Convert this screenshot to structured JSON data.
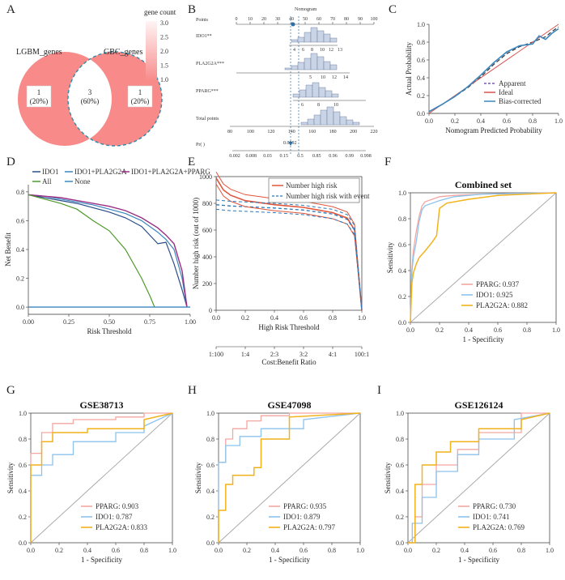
{
  "panels": {
    "A": {
      "label": "A",
      "chart_data": {
        "type": "venn",
        "sets": [
          "LGBM_genes",
          "GBC_genes"
        ],
        "regions": [
          {
            "set": "LGBM_genes only",
            "count": "1",
            "pct": "(20%)"
          },
          {
            "set": "both",
            "count": "3",
            "pct": "(60%)"
          },
          {
            "set": "GBC_genes only",
            "count": "1",
            "pct": "(20%)"
          }
        ],
        "legend_title": "gene count",
        "legend_ticks": [
          "3.0",
          "2.5",
          "2.0",
          "1.5",
          "1.0"
        ]
      }
    },
    "B": {
      "label": "B",
      "chart_data": {
        "type": "nomogram",
        "rows": [
          "Points",
          "IDO1**",
          "PLA2G2A***",
          "PPARG***",
          "Total points",
          "Pr( )"
        ],
        "points_ticks": [
          "0",
          "10",
          "20",
          "30",
          "40",
          "50",
          "60",
          "70",
          "80",
          "90",
          "100"
        ],
        "ido1_ticks": [
          "4",
          "6",
          "8",
          "10",
          "12",
          "13"
        ],
        "pla2g2a_ticks": [
          "5",
          "10",
          "12",
          "14"
        ],
        "pparg_ticks": [
          "6",
          "8",
          "10"
        ],
        "total_ticks": [
          "80",
          "100",
          "120",
          "140",
          "160",
          "180",
          "200",
          "220"
        ],
        "prob_ticks": [
          "0.002",
          "0.008",
          "0.03",
          "0.15",
          "0.5",
          "0.85",
          "0.96",
          "0.99",
          "0.998"
        ],
        "highlight_label": "Nomogram",
        "prob_value": "0.0592"
      }
    },
    "C": {
      "label": "C",
      "chart_data": {
        "type": "line",
        "xlabel": "Nomogram Predicted Probability",
        "ylabel": "Actual Probability",
        "xlim": [
          0,
          1
        ],
        "ylim": [
          0,
          1
        ],
        "x_ticks": [
          "0.0",
          "0.2",
          "0.4",
          "0.6",
          "0.8",
          "1.0"
        ],
        "y_ticks": [
          "0.0",
          "0.2",
          "0.4",
          "0.6",
          "0.8",
          "1.0"
        ],
        "legend": [
          "Apparent",
          "Ideal",
          "Bias-corrected"
        ],
        "series": [
          {
            "name": "Apparent",
            "x": [
              0,
              0.1,
              0.2,
              0.3,
              0.4,
              0.5,
              0.6,
              0.7,
              0.8,
              0.85,
              0.9,
              0.95,
              1.0
            ],
            "y": [
              0.02,
              0.1,
              0.19,
              0.29,
              0.41,
              0.55,
              0.67,
              0.75,
              0.8,
              0.83,
              0.86,
              0.92,
              0.97
            ]
          },
          {
            "name": "Ideal",
            "x": [
              0,
              1
            ],
            "y": [
              0,
              1
            ]
          },
          {
            "name": "Bias-corrected",
            "x": [
              0,
              0.1,
              0.2,
              0.3,
              0.4,
              0.5,
              0.6,
              0.7,
              0.8,
              0.85,
              0.9,
              0.95,
              1.0
            ],
            "y": [
              0.02,
              0.1,
              0.19,
              0.3,
              0.43,
              0.57,
              0.69,
              0.76,
              0.78,
              0.87,
              0.83,
              0.9,
              0.95
            ]
          }
        ]
      }
    },
    "D": {
      "label": "D",
      "chart_data": {
        "type": "line",
        "xlabel": "Risk Threshold",
        "ylabel": "Net Benefit",
        "xlim": [
          0,
          1
        ],
        "ylim": [
          -0.05,
          0.85
        ],
        "x_ticks": [
          "0.00",
          "0.25",
          "0.50",
          "0.75",
          "1.00"
        ],
        "y_ticks": [
          "0.0",
          "0.2",
          "0.4",
          "0.6",
          "0.8"
        ],
        "legend": [
          "IDO1",
          "IDO1+PLA2G2A",
          "IDO1+PLA2G2A+PPARG",
          "All",
          "None"
        ],
        "series": [
          {
            "name": "IDO1",
            "x": [
              0,
              0.1,
              0.2,
              0.3,
              0.4,
              0.5,
              0.6,
              0.7,
              0.8,
              0.85,
              0.9,
              0.95,
              0.98
            ],
            "y": [
              0.78,
              0.76,
              0.74,
              0.72,
              0.69,
              0.66,
              0.62,
              0.56,
              0.44,
              0.45,
              0.3,
              0.12,
              0.0
            ]
          },
          {
            "name": "IDO1+PLA2G2A",
            "x": [
              0,
              0.1,
              0.2,
              0.3,
              0.4,
              0.5,
              0.6,
              0.7,
              0.8,
              0.85,
              0.9,
              0.95,
              0.98
            ],
            "y": [
              0.78,
              0.77,
              0.75,
              0.73,
              0.71,
              0.68,
              0.65,
              0.6,
              0.52,
              0.47,
              0.4,
              0.2,
              0.0
            ]
          },
          {
            "name": "IDO1+PLA2G2A+PPARG",
            "x": [
              0,
              0.1,
              0.2,
              0.3,
              0.4,
              0.5,
              0.6,
              0.7,
              0.8,
              0.85,
              0.9,
              0.95,
              0.98
            ],
            "y": [
              0.78,
              0.77,
              0.76,
              0.74,
              0.72,
              0.7,
              0.67,
              0.62,
              0.55,
              0.5,
              0.44,
              0.25,
              0.0
            ]
          },
          {
            "name": "All",
            "x": [
              0,
              0.1,
              0.2,
              0.3,
              0.4,
              0.5,
              0.6,
              0.7,
              0.75,
              0.78
            ],
            "y": [
              0.78,
              0.75,
              0.72,
              0.68,
              0.6,
              0.53,
              0.4,
              0.2,
              0.08,
              0.0
            ]
          },
          {
            "name": "None",
            "x": [
              0,
              1
            ],
            "y": [
              0,
              0
            ]
          }
        ]
      }
    },
    "E": {
      "label": "E",
      "chart_data": {
        "type": "line",
        "xlabel": "High Risk Threshold",
        "ylabel": "Number high risk (out of 1000)",
        "xlabel2": "Cost:Benefit Ratio",
        "xlim": [
          0,
          1
        ],
        "ylim": [
          0,
          1000
        ],
        "x_ticks": [
          "0.0",
          "0.2",
          "0.4",
          "0.6",
          "0.8",
          "1.0"
        ],
        "y_ticks": [
          "0",
          "200",
          "400",
          "600",
          "800",
          "1000"
        ],
        "ratio_ticks": [
          "1:100",
          "1:4",
          "2:3",
          "3:2",
          "4:1",
          "100:1"
        ],
        "legend": [
          "Number high risk",
          "Number high risk with event"
        ],
        "series": [
          {
            "name": "Number high risk",
            "x": [
              0,
              0.05,
              0.1,
              0.2,
              0.4,
              0.6,
              0.8,
              0.9,
              0.95,
              1.0
            ],
            "y": [
              990,
              900,
              860,
              820,
              790,
              770,
              730,
              690,
              600,
              0
            ]
          },
          {
            "name": "Number high risk with event",
            "x": [
              0,
              0.05,
              0.1,
              0.2,
              0.4,
              0.6,
              0.8,
              0.9,
              0.95,
              1.0
            ],
            "y": [
              790,
              785,
              780,
              775,
              765,
              750,
              720,
              680,
              600,
              0
            ]
          }
        ]
      }
    },
    "F": {
      "label": "F",
      "chart_data": {
        "type": "roc",
        "title": "Combined set",
        "xlabel": "1 - Specificity",
        "ylabel": "Sensitivity",
        "x_ticks": [
          "0.0",
          "0.2",
          "0.4",
          "0.6",
          "0.8",
          "1.0"
        ],
        "y_ticks": [
          "0.0",
          "0.2",
          "0.4",
          "0.6",
          "0.8",
          "1.0"
        ],
        "series": [
          {
            "name": "PPARG",
            "auc": "0.937",
            "x": [
              0,
              0.01,
              0.02,
              0.04,
              0.06,
              0.08,
              0.1,
              0.15,
              0.2,
              0.3,
              0.5,
              1.0
            ],
            "y": [
              0,
              0.4,
              0.55,
              0.7,
              0.82,
              0.9,
              0.93,
              0.95,
              0.97,
              0.98,
              0.99,
              1.0
            ]
          },
          {
            "name": "IDO1",
            "auc": "0.925",
            "x": [
              0,
              0.01,
              0.02,
              0.04,
              0.06,
              0.08,
              0.1,
              0.15,
              0.2,
              0.3,
              0.5,
              1.0
            ],
            "y": [
              0,
              0.38,
              0.5,
              0.62,
              0.78,
              0.87,
              0.9,
              0.92,
              0.94,
              0.97,
              0.99,
              1.0
            ]
          },
          {
            "name": "PLA2G2A",
            "auc": "0.882",
            "x": [
              0,
              0.01,
              0.02,
              0.04,
              0.06,
              0.1,
              0.15,
              0.18,
              0.2,
              0.25,
              0.4,
              0.6,
              1.0
            ],
            "y": [
              0,
              0.3,
              0.38,
              0.45,
              0.5,
              0.55,
              0.62,
              0.67,
              0.88,
              0.92,
              0.95,
              0.98,
              1.0
            ]
          }
        ]
      }
    },
    "G": {
      "label": "G",
      "chart_data": {
        "type": "roc",
        "title": "GSE38713",
        "xlabel": "1 - Specificity",
        "ylabel": "Sensitivity",
        "x_ticks": [
          "0.0",
          "0.2",
          "0.4",
          "0.6",
          "0.8",
          "1.0"
        ],
        "y_ticks": [
          "0.0",
          "0.2",
          "0.4",
          "0.6",
          "0.8",
          "1.0"
        ],
        "series": [
          {
            "name": "PPARG",
            "auc": "0.903",
            "x": [
              0,
              0,
              0.077,
              0.077,
              0.154,
              0.154,
              0.3,
              0.3,
              0.6,
              0.6,
              0.8,
              0.8,
              1.0
            ],
            "y": [
              0,
              0.69,
              0.69,
              0.85,
              0.85,
              0.92,
              0.92,
              0.95,
              0.95,
              0.97,
              0.97,
              1.0,
              1.0
            ]
          },
          {
            "name": "IDO1",
            "auc": "0.787",
            "x": [
              0,
              0,
              0.077,
              0.077,
              0.154,
              0.154,
              0.3,
              0.3,
              0.6,
              0.6,
              0.8,
              0.8,
              1.0
            ],
            "y": [
              0,
              0.52,
              0.52,
              0.6,
              0.6,
              0.68,
              0.68,
              0.78,
              0.78,
              0.85,
              0.85,
              0.9,
              1.0
            ]
          },
          {
            "name": "PLA2G2A",
            "auc": "0.833",
            "x": [
              0,
              0,
              0.077,
              0.077,
              0.154,
              0.154,
              0.4,
              0.4,
              0.8,
              0.8,
              1.0
            ],
            "y": [
              0,
              0.6,
              0.6,
              0.78,
              0.78,
              0.85,
              0.85,
              0.88,
              0.88,
              0.95,
              1.0
            ]
          }
        ]
      }
    },
    "H": {
      "label": "H",
      "chart_data": {
        "type": "roc",
        "title": "GSE47098",
        "xlabel": "1 - Specificity",
        "ylabel": "Sensitivity",
        "x_ticks": [
          "0.0",
          "0.2",
          "0.4",
          "0.6",
          "0.8",
          "1.0"
        ],
        "y_ticks": [
          "0.0",
          "0.2",
          "0.4",
          "0.6",
          "0.8",
          "1.0"
        ],
        "series": [
          {
            "name": "PPARG",
            "auc": "0.935",
            "x": [
              0,
              0,
              0.05,
              0.05,
              0.1,
              0.1,
              0.2,
              0.2,
              0.3,
              0.3,
              0.5,
              0.5,
              1.0
            ],
            "y": [
              0,
              0.62,
              0.62,
              0.8,
              0.8,
              0.88,
              0.88,
              0.94,
              0.94,
              0.98,
              0.98,
              1.0,
              1.0
            ]
          },
          {
            "name": "IDO1",
            "auc": "0.879",
            "x": [
              0,
              0,
              0.05,
              0.05,
              0.15,
              0.15,
              0.3,
              0.3,
              0.6,
              0.6,
              1.0
            ],
            "y": [
              0,
              0.62,
              0.62,
              0.75,
              0.75,
              0.82,
              0.82,
              0.88,
              0.88,
              0.95,
              1.0
            ]
          },
          {
            "name": "PLA2G2A",
            "auc": "0.797",
            "x": [
              0,
              0,
              0.05,
              0.05,
              0.1,
              0.1,
              0.25,
              0.25,
              0.3,
              0.3,
              0.5,
              0.5,
              1.0
            ],
            "y": [
              0,
              0.25,
              0.25,
              0.45,
              0.45,
              0.52,
              0.52,
              0.58,
              0.58,
              0.8,
              0.8,
              0.97,
              1.0
            ]
          }
        ]
      }
    },
    "I": {
      "label": "I",
      "chart_data": {
        "type": "roc",
        "title": "GSE126124",
        "xlabel": "1 - Specificity",
        "ylabel": "Sensitivity",
        "x_ticks": [
          "0.0",
          "0.2",
          "0.4",
          "0.6",
          "0.8",
          "1.0"
        ],
        "y_ticks": [
          "0.0",
          "0.2",
          "0.4",
          "0.6",
          "0.8",
          "1.0"
        ],
        "series": [
          {
            "name": "PPARG",
            "auc": "0.730",
            "x": [
              0,
              0.05,
              0.05,
              0.1,
              0.1,
              0.2,
              0.2,
              0.35,
              0.35,
              0.5,
              0.5,
              0.8,
              0.8,
              1.0
            ],
            "y": [
              0,
              0,
              0.2,
              0.2,
              0.45,
              0.45,
              0.6,
              0.6,
              0.72,
              0.72,
              0.85,
              0.85,
              1.0,
              1.0
            ]
          },
          {
            "name": "IDO1",
            "auc": "0.741",
            "x": [
              0,
              0.03,
              0.03,
              0.1,
              0.1,
              0.2,
              0.2,
              0.35,
              0.35,
              0.5,
              0.5,
              0.75,
              0.75,
              1.0
            ],
            "y": [
              0,
              0,
              0.15,
              0.15,
              0.35,
              0.35,
              0.55,
              0.55,
              0.68,
              0.68,
              0.8,
              0.8,
              0.95,
              1.0
            ]
          },
          {
            "name": "PLA2G2A",
            "auc": "0.769",
            "x": [
              0,
              0.05,
              0.05,
              0.1,
              0.1,
              0.2,
              0.2,
              0.3,
              0.3,
              0.5,
              0.5,
              0.8,
              0.8,
              1.0
            ],
            "y": [
              0,
              0,
              0.45,
              0.45,
              0.6,
              0.6,
              0.7,
              0.7,
              0.78,
              0.78,
              0.88,
              0.88,
              0.95,
              1.0
            ]
          }
        ]
      }
    }
  }
}
